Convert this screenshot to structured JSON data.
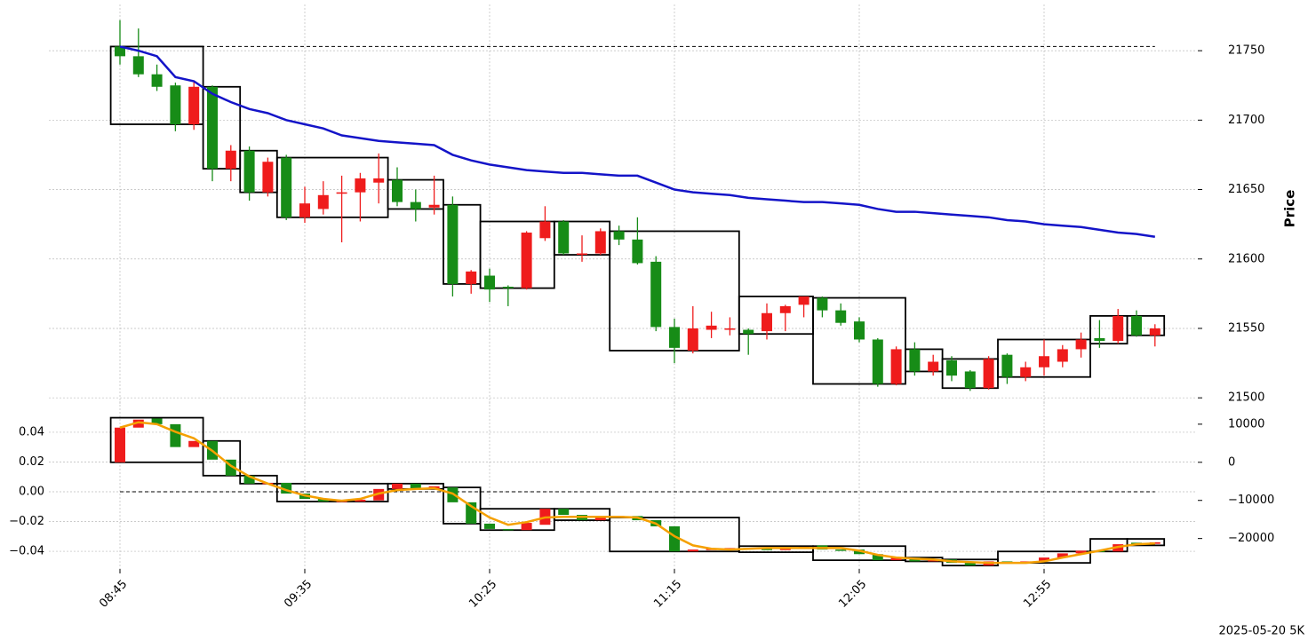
{
  "chart_data": [
    {
      "type": "candlestick",
      "ylabel": "Price",
      "categories": [
        "08:45",
        null,
        null,
        null,
        null,
        null,
        null,
        null,
        null,
        null,
        "09:35",
        null,
        null,
        null,
        null,
        null,
        null,
        null,
        null,
        null,
        "10:25",
        null,
        null,
        null,
        null,
        null,
        null,
        null,
        null,
        null,
        "11:15",
        null,
        null,
        null,
        null,
        null,
        null,
        null,
        null,
        null,
        "12:05",
        null,
        null,
        null,
        null,
        null,
        null,
        null,
        null,
        null,
        "12:55",
        null,
        null,
        null,
        null,
        null,
        null
      ],
      "ylim": [
        21495,
        21775
      ],
      "yticks": [
        21500,
        21550,
        21600,
        21650,
        21700,
        21750
      ],
      "yaxis_side": "right",
      "grid": true,
      "up_color": "#ef1c1c",
      "down_color": "#178c17",
      "candles": {
        "axis": "y",
        "open": [
          21753,
          21746,
          21733,
          21725,
          21697,
          21724,
          21665,
          21678,
          21648,
          21673,
          21630,
          21636,
          21647,
          21648,
          21655,
          21657,
          21641,
          21637,
          21639,
          21582,
          21588,
          21580,
          21579,
          21615,
          21627,
          21603,
          21604,
          21620,
          21614,
          21598,
          21551,
          21534,
          21549,
          21549,
          21549,
          21548,
          21561,
          21567,
          21572,
          21563,
          21555,
          21542,
          21510,
          21535,
          21519,
          21527,
          21519,
          21507,
          21531,
          21515,
          21522,
          21526,
          21535,
          21543,
          21541,
          21559,
          21545
        ],
        "high": [
          21772,
          21766,
          21740,
          21727,
          21728,
          21725,
          21682,
          21681,
          21673,
          21675,
          21652,
          21656,
          21660,
          21662,
          21676,
          21666,
          21650,
          21660,
          21645,
          21592,
          21593,
          21581,
          21620,
          21638,
          21628,
          21617,
          21622,
          21624,
          21630,
          21602,
          21557,
          21566,
          21562,
          21558,
          21550,
          21568,
          21567,
          21573,
          21573,
          21568,
          21558,
          21543,
          21537,
          21540,
          21531,
          21530,
          21520,
          21530,
          21532,
          21526,
          21542,
          21538,
          21547,
          21556,
          21564,
          21563,
          21553
        ],
        "low": [
          21740,
          21731,
          21721,
          21692,
          21693,
          21656,
          21656,
          21642,
          21645,
          21628,
          21626,
          21632,
          21612,
          21627,
          21640,
          21638,
          21627,
          21632,
          21573,
          21575,
          21569,
          21566,
          21578,
          21613,
          21603,
          21598,
          21603,
          21610,
          21596,
          21548,
          21525,
          21532,
          21543,
          21545,
          21531,
          21542,
          21548,
          21558,
          21558,
          21552,
          21540,
          21508,
          21509,
          21516,
          21516,
          21512,
          21505,
          21506,
          21510,
          21512,
          21516,
          21522,
          21529,
          21536,
          21539,
          21544,
          21537
        ],
        "close": [
          21746,
          21733,
          21724,
          21697,
          21724,
          21665,
          21678,
          21648,
          21670,
          21630,
          21640,
          21646,
          21648,
          21658,
          21658,
          21641,
          21636,
          21639,
          21582,
          21591,
          21578,
          21579,
          21619,
          21627,
          21604,
          21604,
          21620,
          21614,
          21597,
          21551,
          21536,
          21550,
          21552,
          21550,
          21546,
          21561,
          21566,
          21573,
          21563,
          21554,
          21542,
          21510,
          21535,
          21519,
          21526,
          21516,
          21507,
          21528,
          21515,
          21522,
          21530,
          21535,
          21542,
          21541,
          21559,
          21545,
          21550
        ]
      },
      "series": [
        {
          "color": "#1414c8",
          "axis": "y",
          "values": [
            21753,
            21750,
            21746,
            21731,
            21728,
            21719,
            21713,
            21708,
            21705,
            21700,
            21697,
            21694,
            21689,
            21687,
            21685,
            21684,
            21683,
            21682,
            21675,
            21671,
            21668,
            21666,
            21664,
            21663,
            21662,
            21662,
            21661,
            21660,
            21660,
            21655,
            21650,
            21648,
            21647,
            21646,
            21644,
            21643,
            21642,
            21641,
            21641,
            21640,
            21639,
            21636,
            21634,
            21634,
            21633,
            21632,
            21631,
            21630,
            21628,
            21627,
            21625,
            21624,
            21623,
            21621,
            21619,
            21618,
            21616
          ]
        }
      ],
      "hline": {
        "value": 21753,
        "axis": "y"
      },
      "boxes": [
        {
          "start": 0,
          "end": 4,
          "top": 21753,
          "bottom": 21697
        },
        {
          "start": 5,
          "end": 6,
          "top": 21724,
          "bottom": 21665
        },
        {
          "start": 7,
          "end": 8,
          "top": 21678,
          "bottom": 21648
        },
        {
          "start": 9,
          "end": 14,
          "top": 21673,
          "bottom": 21630
        },
        {
          "start": 15,
          "end": 17,
          "top": 21657,
          "bottom": 21636
        },
        {
          "start": 18,
          "end": 19,
          "top": 21639,
          "bottom": 21582
        },
        {
          "start": 20,
          "end": 23,
          "top": 21627,
          "bottom": 21579
        },
        {
          "start": 24,
          "end": 26,
          "top": 21627,
          "bottom": 21603
        },
        {
          "start": 27,
          "end": 33,
          "top": 21620,
          "bottom": 21534
        },
        {
          "start": 34,
          "end": 37,
          "top": 21573,
          "bottom": 21546
        },
        {
          "start": 38,
          "end": 42,
          "top": 21572,
          "bottom": 21510
        },
        {
          "start": 43,
          "end": 44,
          "top": 21535,
          "bottom": 21519
        },
        {
          "start": 45,
          "end": 47,
          "top": 21528,
          "bottom": 21507
        },
        {
          "start": 48,
          "end": 52,
          "top": 21542,
          "bottom": 21515
        },
        {
          "start": 53,
          "end": 54,
          "top": 21559,
          "bottom": 21539
        },
        {
          "start": 55,
          "end": 56,
          "top": 21559,
          "bottom": 21545
        }
      ]
    },
    {
      "type": "candlestick",
      "ylim": [
        -0.0519,
        0.0531
      ],
      "yticks": [
        0.04,
        0.02,
        {
          "value": 0,
          "label": "0.00"
        },
        {
          "value": -0.02,
          "label": "−0.02"
        },
        {
          "value": -0.04,
          "label": "−0.04"
        }
      ],
      "yaxis_side": "left",
      "y2lim": [
        -28000,
        13000
      ],
      "y2ticks": [
        10000,
        0,
        {
          "value": -10000,
          "label": "−10000"
        },
        {
          "value": -20000,
          "label": "−20000"
        }
      ],
      "grid": true,
      "up_color": "#ef1c1c",
      "down_color": "#178c17",
      "candles": {
        "axis": "y2",
        "open": [
          0,
          9100,
          11500,
          10000,
          4000,
          5600,
          700,
          -3500,
          -5600,
          -5400,
          -8200,
          -9600,
          -10300,
          -10300,
          -10000,
          -7000,
          -5600,
          -7000,
          -6600,
          -10500,
          -16100,
          -17500,
          -17800,
          -16400,
          -12200,
          -13800,
          -15200,
          -14300,
          -14100,
          -15200,
          -16800,
          -23400,
          -22900,
          -22900,
          -22500,
          -22700,
          -22900,
          -22700,
          -21800,
          -22900,
          -22900,
          -24100,
          -25700,
          -25000,
          -26000,
          -25500,
          -26400,
          -27100,
          -26000,
          -26400,
          -26000,
          -25000,
          -23900,
          -23200,
          -23400,
          -21100,
          -21400
        ],
        "close": [
          9100,
          11200,
          10000,
          4000,
          5600,
          700,
          -3500,
          -5600,
          -5400,
          -8200,
          -9600,
          -10300,
          -10100,
          -9800,
          -7000,
          -5600,
          -7000,
          -6300,
          -10500,
          -16100,
          -17500,
          -17800,
          -15900,
          -12200,
          -13800,
          -15200,
          -14300,
          -14100,
          -15200,
          -16800,
          -23400,
          -22900,
          -22700,
          -22500,
          -22900,
          -22900,
          -22700,
          -22200,
          -22900,
          -23100,
          -24100,
          -25700,
          -25000,
          -26000,
          -25500,
          -26400,
          -27100,
          -26000,
          -26400,
          -26000,
          -25000,
          -23900,
          -23200,
          -23400,
          -21500,
          -21500,
          -21000
        ]
      },
      "series": [
        {
          "color": "#f5a000",
          "axis": "y2",
          "values": [
            9100,
            10500,
            10000,
            8000,
            6300,
            3000,
            -900,
            -3700,
            -5600,
            -7300,
            -8700,
            -9600,
            -10100,
            -9600,
            -8200,
            -7300,
            -7000,
            -6800,
            -8200,
            -11500,
            -14500,
            -16400,
            -15700,
            -14500,
            -14300,
            -14300,
            -14300,
            -14300,
            -14500,
            -16100,
            -19400,
            -21800,
            -22700,
            -22900,
            -22700,
            -22500,
            -22500,
            -22500,
            -22500,
            -22500,
            -23200,
            -24300,
            -25000,
            -25300,
            -25500,
            -26000,
            -26200,
            -26400,
            -26400,
            -26400,
            -26000,
            -25000,
            -24100,
            -23200,
            -22200,
            -21500,
            -21300
          ]
        }
      ],
      "hline": {
        "value": 0,
        "axis": "y"
      },
      "boxes": [
        {
          "start": 0,
          "end": 4,
          "top": 11700,
          "bottom": 0
        },
        {
          "start": 5,
          "end": 6,
          "top": 5600,
          "bottom": -3500
        },
        {
          "start": 7,
          "end": 8,
          "top": -3500,
          "bottom": -5600
        },
        {
          "start": 9,
          "end": 14,
          "top": -5600,
          "bottom": -10300
        },
        {
          "start": 15,
          "end": 17,
          "top": -5600,
          "bottom": -7000
        },
        {
          "start": 18,
          "end": 19,
          "top": -6600,
          "bottom": -16100
        },
        {
          "start": 20,
          "end": 23,
          "top": -12200,
          "bottom": -17800
        },
        {
          "start": 24,
          "end": 26,
          "top": -12200,
          "bottom": -15200
        },
        {
          "start": 27,
          "end": 33,
          "top": -14500,
          "bottom": -23400
        },
        {
          "start": 34,
          "end": 37,
          "top": -22000,
          "bottom": -23600
        },
        {
          "start": 38,
          "end": 42,
          "top": -22000,
          "bottom": -25700
        },
        {
          "start": 43,
          "end": 44,
          "top": -25000,
          "bottom": -26000
        },
        {
          "start": 45,
          "end": 47,
          "top": -25500,
          "bottom": -27100
        },
        {
          "start": 48,
          "end": 52,
          "top": -23400,
          "bottom": -26400
        },
        {
          "start": 53,
          "end": 54,
          "top": -20100,
          "bottom": -23400
        },
        {
          "start": 55,
          "end": 56,
          "top": -20100,
          "bottom": -21800
        }
      ],
      "box_axis": "y2"
    }
  ],
  "footer": "2025-05-20 5K"
}
